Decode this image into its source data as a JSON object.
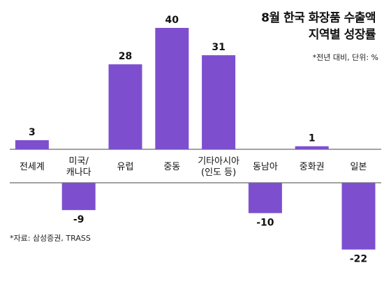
{
  "chart_data": {
    "type": "bar",
    "title_line1": "8월 한국 화장품 수출액",
    "title_line2": "지역별 성장률",
    "note": "*전년 대비, 단위: %",
    "source": "*자료: 삼성증권, TRASS",
    "categories": [
      [
        "전세계"
      ],
      [
        "미국/",
        "캐나다"
      ],
      [
        "유럽"
      ],
      [
        "중동"
      ],
      [
        "기타아시아",
        "(인도 등)"
      ],
      [
        "동남아"
      ],
      [
        "중화권"
      ],
      [
        "일본"
      ]
    ],
    "values": [
      3,
      -9,
      28,
      40,
      31,
      -10,
      1,
      -22
    ],
    "value_labels": [
      "3",
      "-9",
      "28",
      "40",
      "31",
      "-10",
      "1",
      "-22"
    ],
    "bar_color": "#7d4fcf",
    "ylim": [
      -22,
      40
    ],
    "grid": false
  }
}
